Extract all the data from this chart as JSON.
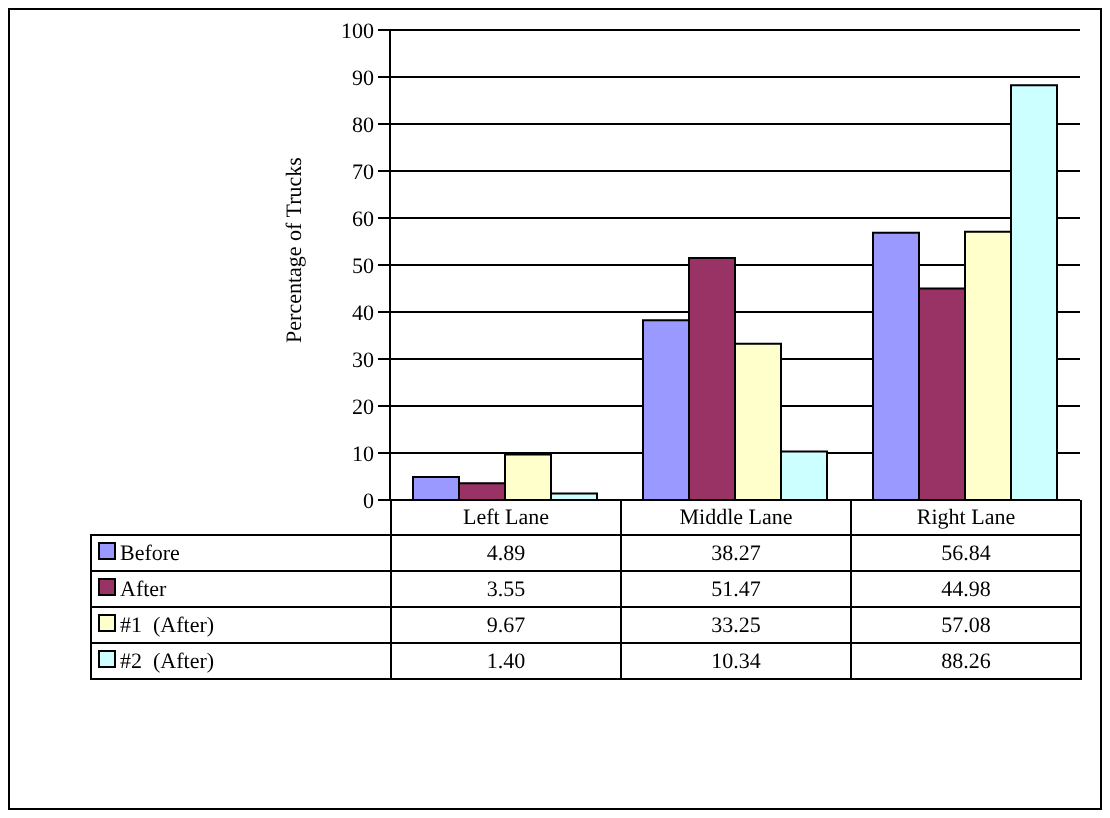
{
  "chart_data": {
    "type": "bar",
    "ylabel": "Percentage of Trucks",
    "categories": [
      "Left Lane",
      "Middle Lane",
      "Right Lane"
    ],
    "series": [
      {
        "name": "Before",
        "color": "#9999ff",
        "values": [
          4.89,
          38.27,
          56.84
        ],
        "value_labels": [
          "4.89",
          "38.27",
          "56.84"
        ]
      },
      {
        "name": "After",
        "color": "#993366",
        "values": [
          3.55,
          51.47,
          44.98
        ],
        "value_labels": [
          "3.55",
          "51.47",
          "44.98"
        ]
      },
      {
        "name": "#1  (After)",
        "color": "#ffffcc",
        "values": [
          9.67,
          33.25,
          57.08
        ],
        "value_labels": [
          "9.67",
          "33.25",
          "57.08"
        ]
      },
      {
        "name": "#2  (After)",
        "color": "#ccffff",
        "values": [
          1.4,
          10.34,
          88.26
        ],
        "value_labels": [
          "1.40",
          "10.34",
          "88.26"
        ]
      }
    ],
    "ylim": [
      0,
      100
    ],
    "yticks": [
      0,
      10,
      20,
      30,
      40,
      50,
      60,
      70,
      80,
      90,
      100
    ],
    "grid": "y",
    "legend": "bottom"
  }
}
